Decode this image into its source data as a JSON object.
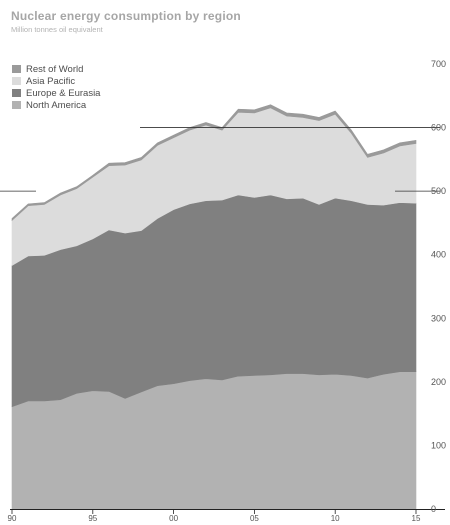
{
  "chart_data": {
    "type": "area",
    "stacked": true,
    "title": "Nuclear energy consumption by region",
    "subtitle": "Million tonnes oil equivalent",
    "x": [
      1990,
      1991,
      1992,
      1993,
      1994,
      1995,
      1996,
      1997,
      1998,
      1999,
      2000,
      2001,
      2002,
      2003,
      2004,
      2005,
      2006,
      2007,
      2008,
      2009,
      2010,
      2011,
      2012,
      2013,
      2014,
      2015
    ],
    "x_ticks": [
      1990,
      1995,
      2000,
      2005,
      2010,
      2015
    ],
    "x_tick_labels": [
      "90",
      "95",
      "00",
      "05",
      "10",
      "15"
    ],
    "ylim": [
      0,
      700
    ],
    "y_ticks": [
      0,
      100,
      200,
      300,
      400,
      500,
      600,
      700
    ],
    "y_tick_labels": [
      "0",
      "100",
      "200",
      "300",
      "400",
      "500",
      "600",
      "700"
    ],
    "grid": "partial horizontal lines at 500 and 600",
    "legend_position": "top-left",
    "series": [
      {
        "name": "North America",
        "color": "#b2b2b2",
        "values": [
          161,
          170,
          170,
          172,
          182,
          186,
          185,
          174,
          184,
          194,
          197,
          202,
          205,
          203,
          209,
          210,
          211,
          213,
          213,
          211,
          212,
          210,
          206,
          212,
          216,
          216
        ]
      },
      {
        "name": "Europe & Eurasia",
        "color": "#808080",
        "values": [
          222,
          228,
          229,
          236,
          232,
          239,
          254,
          260,
          254,
          263,
          274,
          278,
          280,
          283,
          285,
          280,
          283,
          275,
          276,
          268,
          277,
          275,
          273,
          266,
          266,
          265
        ]
      },
      {
        "name": "Asia Pacific",
        "color": "#dcdcdc",
        "values": [
          71,
          79,
          80,
          86,
          90,
          97,
          101,
          107,
          111,
          115,
          113,
          116,
          119,
          110,
          130,
          133,
          137,
          130,
          127,
          132,
          132,
          106,
          74,
          82,
          89,
          94
        ]
      },
      {
        "name": "Rest of World",
        "color": "#9a9a9a",
        "values": [
          3,
          3,
          3,
          3,
          3,
          3,
          4,
          4,
          4,
          4,
          4,
          4,
          4,
          4,
          5,
          5,
          5,
          5,
          5,
          5,
          5,
          5,
          5,
          5,
          5,
          5
        ]
      }
    ],
    "legend_order": [
      "Rest of World",
      "Asia Pacific",
      "Europe & Eurasia",
      "North America"
    ]
  }
}
